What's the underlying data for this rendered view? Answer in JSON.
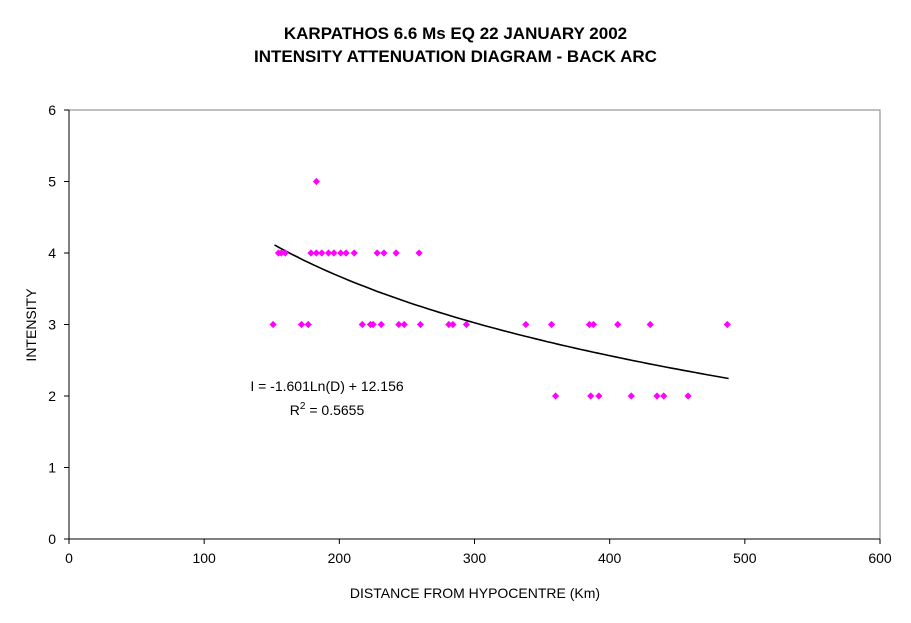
{
  "chart_data": {
    "type": "scatter",
    "title": "KARPATHOS 6.6 Ms EQ 22 JANUARY 2002",
    "subtitle": "INTENSITY ATTENUATION DIAGRAM - BACK ARC",
    "xlabel": "DISTANCE FROM HYPOCENTRE (Km)",
    "ylabel": "INTENSITY",
    "xlim": [
      0,
      600
    ],
    "ylim": [
      0,
      6
    ],
    "xticks": [
      "0",
      "100",
      "200",
      "300",
      "400",
      "500",
      "600"
    ],
    "yticks": [
      "0",
      "1",
      "2",
      "3",
      "4",
      "5",
      "6"
    ],
    "grid": false,
    "marker_color": "#ff00ff",
    "trend_color": "#000000",
    "series": [
      {
        "points": [
          [
            151,
            3
          ],
          [
            155,
            4
          ],
          [
            157,
            4
          ],
          [
            160,
            4
          ],
          [
            172,
            3
          ],
          [
            177,
            3
          ],
          [
            179,
            4
          ],
          [
            183,
            4
          ],
          [
            183,
            5
          ],
          [
            187,
            4
          ],
          [
            192,
            4
          ],
          [
            196,
            4
          ],
          [
            201,
            4
          ],
          [
            205,
            4
          ],
          [
            211,
            4
          ],
          [
            217,
            3
          ],
          [
            223,
            3
          ],
          [
            225,
            3
          ],
          [
            228,
            4
          ],
          [
            231,
            3
          ],
          [
            233,
            4
          ],
          [
            242,
            4
          ],
          [
            244,
            3
          ],
          [
            248,
            3
          ],
          [
            259,
            4
          ],
          [
            260,
            3
          ],
          [
            281,
            3
          ],
          [
            284,
            3
          ],
          [
            294,
            3
          ],
          [
            338,
            3
          ],
          [
            357,
            3
          ],
          [
            360,
            2
          ],
          [
            385,
            3
          ],
          [
            386,
            2
          ],
          [
            388,
            3
          ],
          [
            392,
            2
          ],
          [
            406,
            3
          ],
          [
            416,
            2
          ],
          [
            430,
            3
          ],
          [
            435,
            2
          ],
          [
            440,
            2
          ],
          [
            458,
            2
          ],
          [
            487,
            3
          ]
        ]
      }
    ],
    "trendline": {
      "type": "logarithmic",
      "a": -1.601,
      "b": 12.156,
      "x_range": [
        152,
        488
      ],
      "equation": "I = -1.601Ln(D) + 12.156",
      "r2_label": "R",
      "r2_sup": "2",
      "r2_value": " = 0.5655"
    }
  }
}
